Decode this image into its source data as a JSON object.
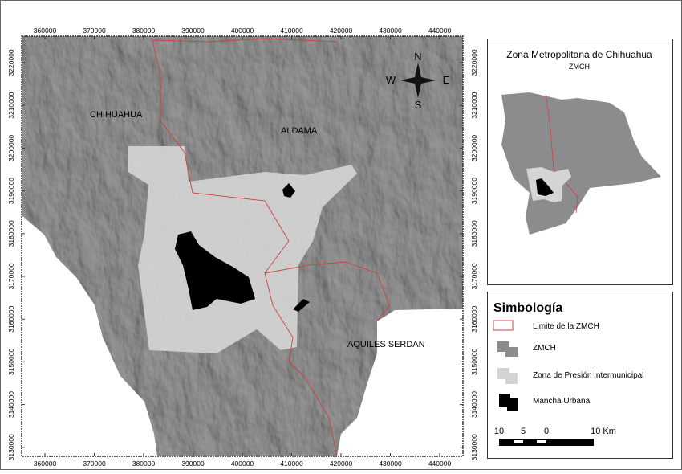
{
  "map": {
    "x_ticks": [
      360000,
      370000,
      380000,
      390000,
      400000,
      410000,
      420000,
      430000,
      440000
    ],
    "y_ticks": [
      3220000,
      3210000,
      3200000,
      3190000,
      3180000,
      3170000,
      3160000,
      3150000,
      3140000,
      3130000
    ],
    "places": [
      "CHIHUAHUA",
      "ALDAMA",
      "AQUILES SERDAN"
    ],
    "compass": {
      "north": "N",
      "south": "S",
      "east": "E",
      "west": "W"
    }
  },
  "inset": {
    "title": "Zona Metropolitana de Chihuahua",
    "subtitle": "ZMCH"
  },
  "legend": {
    "title": "Simbología",
    "items": [
      "Limite de la ZMCH",
      "ZMCH",
      "Zona de Presión Intermunicipal",
      "Mancha Urbana"
    ],
    "scale_labels": [
      "10",
      "5",
      "0",
      "10 Km"
    ]
  }
}
